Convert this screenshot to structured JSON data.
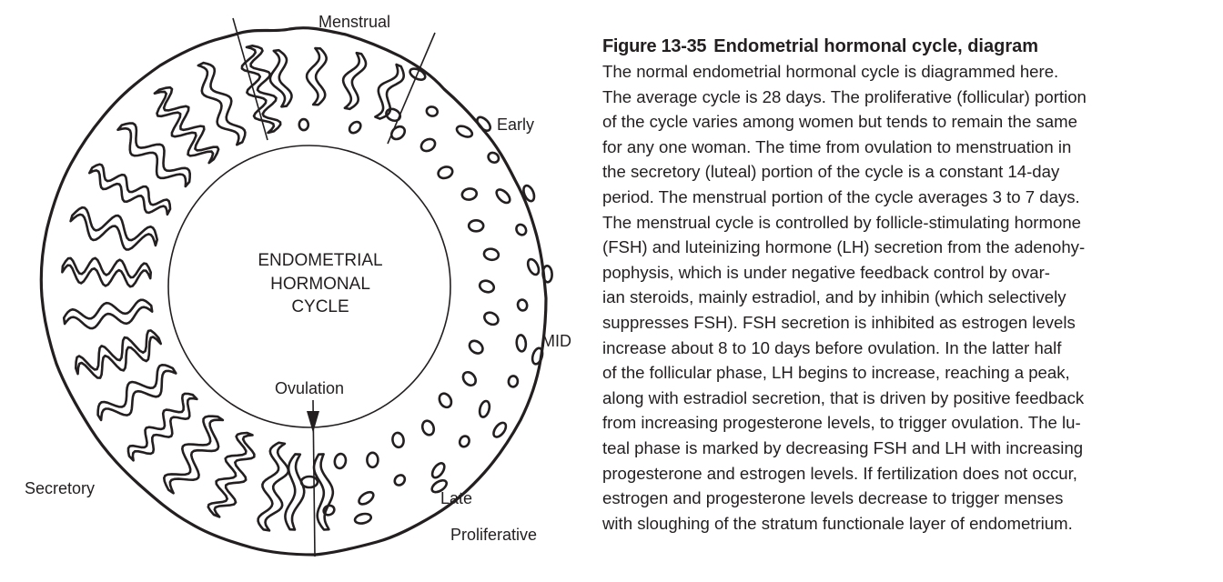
{
  "diagram": {
    "center_label": [
      "ENDOMETRIAL",
      "HORMONAL",
      "CYCLE"
    ],
    "labels": {
      "menstrual": "Menstrual",
      "early": "Early",
      "mid": "MID",
      "ovulation": "Ovulation",
      "late": "Late",
      "proliferative": "Proliferative",
      "secretory": "Secretory"
    }
  },
  "caption": {
    "figure_number": "Figure 13-35",
    "title": "Endometrial hormonal cycle, diagram",
    "lines": [
      "The normal endometrial hormonal cycle is diagrammed here.",
      "The average cycle is 28 days. The proliferative (follicular) portion",
      "of the cycle varies among women but tends to remain the same",
      "for any one woman. The time from ovulation to menstruation in",
      "the secretory (luteal) portion of the cycle is a constant 14-day",
      "period. The menstrual portion of the cycle averages 3 to 7 days.",
      "The menstrual cycle is controlled by follicle-stimulating hormone",
      "(FSH) and luteinizing hormone (LH) secretion from the adenohy-",
      "pophysis, which is under negative feedback control by ovar-",
      "ian steroids, mainly estradiol, and by inhibin (which selectively",
      "suppresses FSH). FSH secretion is inhibited as estrogen levels",
      "increase about 8 to 10 days before ovulation. In the latter half",
      "of the follicular phase, LH begins to increase, reaching a peak,",
      "along with estradiol secretion, that is driven by positive feedback",
      "from increasing progesterone levels, to trigger ovulation. The lu-",
      "teal phase is marked by decreasing FSH and LH with increasing",
      "progesterone and estrogen levels. If fertilization does not occur,",
      "estrogen and progesterone levels decrease to trigger menses",
      "with sloughing of the stratum functionale layer of endometrium."
    ]
  }
}
